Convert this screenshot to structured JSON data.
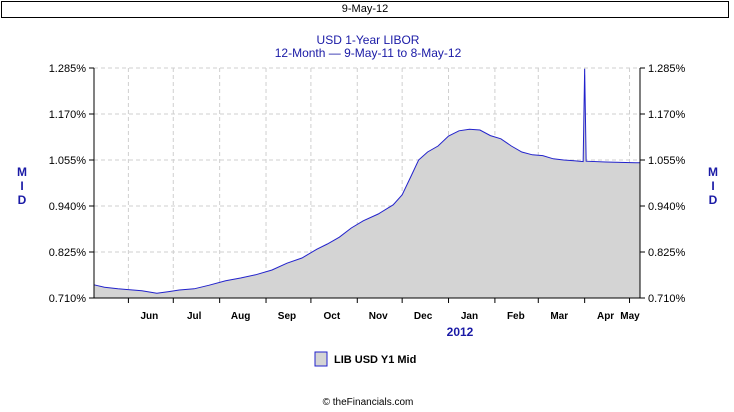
{
  "header": {
    "date_label": "9-May-12"
  },
  "footer": {
    "text": "© theFinancials.com"
  },
  "chart_data": {
    "type": "area",
    "title": "USD 1-Year LIBOR",
    "subtitle": "12-Month — 9-May-11 to 8-May-12",
    "ylabel": "MID",
    "ylabel_right": "MID",
    "xlabel": "2012",
    "ylim": [
      0.71,
      1.285
    ],
    "y_ticks": [
      "0.710%",
      "0.825%",
      "0.940%",
      "1.055%",
      "1.170%",
      "1.285%"
    ],
    "x_ticks": [
      "Jun",
      "Jul",
      "Aug",
      "Sep",
      "Oct",
      "Nov",
      "Dec",
      "Jan",
      "Feb",
      "Mar",
      "Apr",
      "May"
    ],
    "x_range": [
      "2011-05-09",
      "2012-05-08"
    ],
    "grid": true,
    "legend": "bottom-center",
    "series": [
      {
        "name": "LIB USD Y1 Mid",
        "fill": "#d4d4d4",
        "line": "#2222cc",
        "points": [
          [
            "2011-05-09",
            0.743
          ],
          [
            "2011-05-16",
            0.737
          ],
          [
            "2011-05-25",
            0.733
          ],
          [
            "2011-06-01",
            0.731
          ],
          [
            "2011-06-10",
            0.728
          ],
          [
            "2011-06-20",
            0.722
          ],
          [
            "2011-06-28",
            0.726
          ],
          [
            "2011-07-05",
            0.73
          ],
          [
            "2011-07-15",
            0.733
          ],
          [
            "2011-07-25",
            0.742
          ],
          [
            "2011-08-05",
            0.753
          ],
          [
            "2011-08-15",
            0.76
          ],
          [
            "2011-08-25",
            0.768
          ],
          [
            "2011-09-05",
            0.78
          ],
          [
            "2011-09-15",
            0.797
          ],
          [
            "2011-09-25",
            0.81
          ],
          [
            "2011-10-05",
            0.832
          ],
          [
            "2011-10-12",
            0.845
          ],
          [
            "2011-10-20",
            0.862
          ],
          [
            "2011-10-28",
            0.885
          ],
          [
            "2011-11-05",
            0.903
          ],
          [
            "2011-11-15",
            0.92
          ],
          [
            "2011-11-25",
            0.943
          ],
          [
            "2011-12-01",
            0.968
          ],
          [
            "2011-12-07",
            1.015
          ],
          [
            "2011-12-12",
            1.055
          ],
          [
            "2011-12-18",
            1.075
          ],
          [
            "2011-12-25",
            1.09
          ],
          [
            "2012-01-01",
            1.115
          ],
          [
            "2012-01-08",
            1.128
          ],
          [
            "2012-01-15",
            1.132
          ],
          [
            "2012-01-22",
            1.13
          ],
          [
            "2012-01-29",
            1.116
          ],
          [
            "2012-02-05",
            1.108
          ],
          [
            "2012-02-12",
            1.09
          ],
          [
            "2012-02-19",
            1.075
          ],
          [
            "2012-02-26",
            1.068
          ],
          [
            "2012-03-04",
            1.066
          ],
          [
            "2012-03-11",
            1.058
          ],
          [
            "2012-03-18",
            1.055
          ],
          [
            "2012-03-25",
            1.053
          ],
          [
            "2012-03-31",
            1.051
          ],
          [
            "2012-04-01",
            1.283
          ],
          [
            "2012-04-02",
            1.052
          ],
          [
            "2012-04-15",
            1.05
          ],
          [
            "2012-04-25",
            1.049
          ],
          [
            "2012-05-08",
            1.048
          ]
        ]
      }
    ]
  }
}
